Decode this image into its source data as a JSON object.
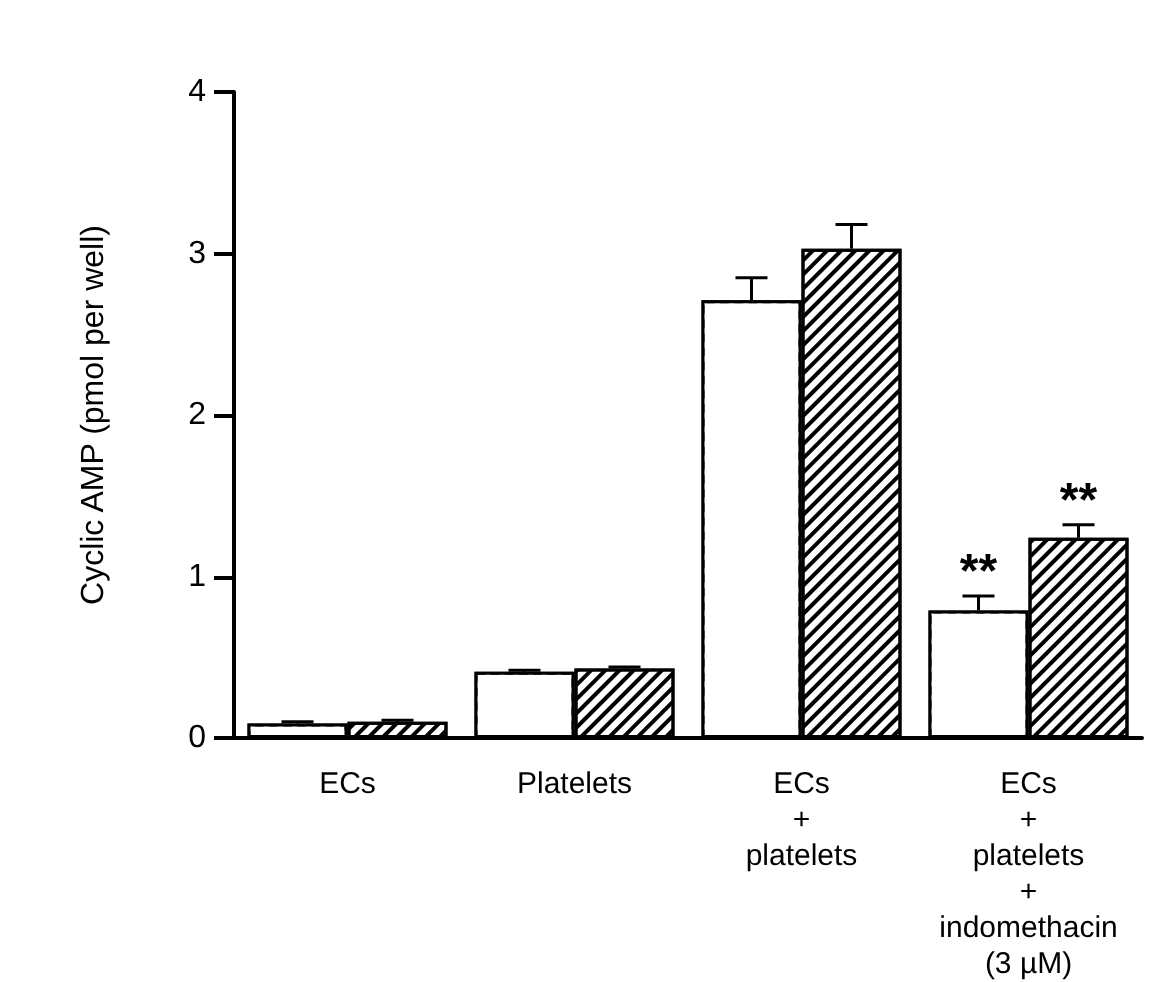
{
  "chart_data": {
    "type": "bar",
    "ylabel": "Cyclic AMP (pmol per well)",
    "categories": [
      "ECs",
      "Platelets",
      "ECs\n+\nplatelets",
      "ECs\n+\nplatelets\n+\nindomethacin\n(3 µM)"
    ],
    "series": [
      {
        "color": "#ffffff",
        "values": [
          0.09,
          0.41,
          2.71,
          0.79
        ],
        "errors": [
          0.01,
          0.01,
          0.14,
          0.09
        ]
      },
      {
        "color": "#000000",
        "values": [
          0.1,
          0.43,
          3.03,
          1.24
        ],
        "errors": [
          0.01,
          0.01,
          0.15,
          0.08
        ]
      }
    ],
    "ylim": [
      0,
      4
    ],
    "yticks": [
      0,
      1,
      2,
      3,
      4
    ],
    "grid": false,
    "annotations": [
      {
        "text": "**",
        "x": "ECs\n+\nplatelets\n+\nindomethacin\n(3 µM)",
        "y": 0.79
      },
      {
        "text": "**",
        "x": "ECs\n+\nplatelets\n+\nindomethacin\n(3 µM)",
        "y": 1.24
      }
    ]
  }
}
